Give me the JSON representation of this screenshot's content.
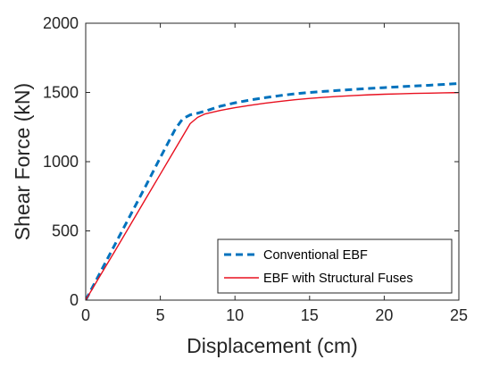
{
  "chart_data": {
    "type": "line",
    "title": "",
    "xlabel": "Displacement (cm)",
    "ylabel": "Shear Force (kN)",
    "xlim": [
      0,
      25
    ],
    "ylim": [
      0,
      2000
    ],
    "xticks": [
      0,
      5,
      10,
      15,
      20,
      25
    ],
    "yticks": [
      0,
      500,
      1000,
      1500,
      2000
    ],
    "grid": false,
    "legend_position": "bottom-right",
    "series": [
      {
        "name": "Conventional EBF",
        "color": "#0072BD",
        "style": "dashed",
        "x": [
          0,
          1,
          2,
          3,
          4,
          5,
          6,
          6.5,
          7,
          7.5,
          8,
          9,
          10,
          11,
          12,
          13,
          14,
          15,
          16,
          17,
          18,
          19,
          20,
          21,
          22,
          23,
          24,
          25
        ],
        "y": [
          0,
          205,
          410,
          615,
          820,
          1030,
          1235,
          1310,
          1338,
          1350,
          1365,
          1400,
          1425,
          1445,
          1462,
          1477,
          1490,
          1500,
          1508,
          1515,
          1522,
          1529,
          1535,
          1541,
          1547,
          1552,
          1558,
          1565
        ]
      },
      {
        "name": "EBF with Structural Fuses",
        "color": "#E8101F",
        "style": "solid",
        "x": [
          0,
          1,
          2,
          3,
          4,
          5,
          6,
          7,
          7.5,
          8,
          9,
          10,
          11,
          12,
          13,
          14,
          15,
          16,
          17,
          18,
          19,
          20,
          21,
          22,
          23,
          24,
          25
        ],
        "y": [
          0,
          182,
          362,
          545,
          728,
          910,
          1093,
          1275,
          1320,
          1345,
          1370,
          1390,
          1407,
          1422,
          1435,
          1447,
          1457,
          1465,
          1472,
          1478,
          1483,
          1487,
          1490,
          1493,
          1495,
          1497,
          1499
        ]
      }
    ]
  }
}
